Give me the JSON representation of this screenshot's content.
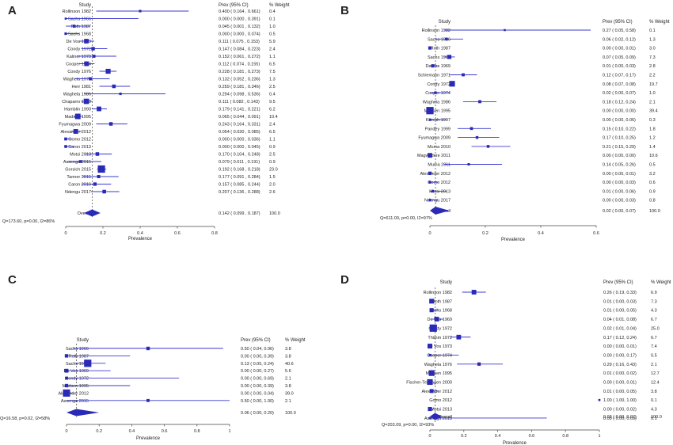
{
  "chart_data": [
    {
      "panel": "A",
      "type": "forest",
      "study_header": "Study",
      "prev_header": "Prev (95% CI)",
      "weight_header": "% Weight",
      "xlabel": "Prevalence",
      "xlim": [
        0,
        0.8
      ],
      "xticks": [
        "0",
        "0.2",
        "0.4",
        "0.6",
        "0.8"
      ],
      "reference_line": 0.142,
      "studies": [
        {
          "name": "Rollinson 1982",
          "est": 0.4,
          "lo": 0.164,
          "hi": 0.661,
          "ci_text": "0.400  ( 0.164 ,  0.661)",
          "weight": "0.4"
        },
        {
          "name": "Sachs 1966",
          "est": 0.0,
          "lo": 0.0,
          "hi": 0.391,
          "ci_text": "0.000  ( 0.000 ,  0.391)",
          "weight": "0.1"
        },
        {
          "name": "Roth 1987",
          "est": 0.045,
          "lo": 0.001,
          "hi": 0.132,
          "ci_text": "0.045  ( 0.001 ,  0.132)",
          "weight": "1.0"
        },
        {
          "name": "Sachs 1968",
          "est": 0.0,
          "lo": 0.0,
          "hi": 0.074,
          "ci_text": "0.000  ( 0.000 ,  0.074)",
          "weight": "0.5"
        },
        {
          "name": "De Vos 1969",
          "est": 0.111,
          "lo": 0.075,
          "hi": 0.153,
          "ci_text": "0.111  ( 0.075 ,  0.153)",
          "weight": "5.9"
        },
        {
          "name": "Condy 1972",
          "est": 0.147,
          "lo": 0.084,
          "hi": 0.223,
          "ci_text": "0.147  ( 0.084 ,  0.223)",
          "weight": "2.4"
        },
        {
          "name": "Kaliner 1973",
          "est": 0.152,
          "lo": 0.061,
          "hi": 0.272,
          "ci_text": "0.152  ( 0.061 ,  0.272)",
          "weight": "1.1"
        },
        {
          "name": "Cooper 1974",
          "est": 0.112,
          "lo": 0.074,
          "hi": 0.155,
          "ci_text": "0.112  ( 0.074 ,  0.155)",
          "weight": "6.5"
        },
        {
          "name": "Condy 1976",
          "est": 0.228,
          "lo": 0.181,
          "hi": 0.273,
          "ci_text": "0.228  ( 0.181 ,  0.273)",
          "weight": "7.5"
        },
        {
          "name": "Waghela 1976",
          "est": 0.132,
          "lo": 0.052,
          "hi": 0.236,
          "ci_text": "0.132  ( 0.052 ,  0.236)",
          "weight": "1.3"
        },
        {
          "name": "Herr 1981",
          "est": 0.259,
          "lo": 0.181,
          "hi": 0.346,
          "ci_text": "0.259  ( 0.181 ,  0.346)",
          "weight": "2.5"
        },
        {
          "name": "Waghela 1986",
          "est": 0.294,
          "lo": 0.098,
          "hi": 0.536,
          "ci_text": "0.294  ( 0.098 ,  0.536)",
          "weight": "0.4"
        },
        {
          "name": "Chaparro 1990",
          "est": 0.111,
          "lo": 0.082,
          "hi": 0.143,
          "ci_text": "0.111  ( 0.082 ,  0.143)",
          "weight": "9.5"
        },
        {
          "name": "Hamblin 1990",
          "est": 0.179,
          "li": 0,
          "lo": 0.141,
          "hi": 0.221,
          "ci_text": "0.179  ( 0.141 ,  0.221)",
          "weight": "6.2"
        },
        {
          "name": "Madsen 1995",
          "est": 0.065,
          "lo": 0.044,
          "hi": 0.091,
          "ci_text": "0.065  ( 0.044 ,  0.091)",
          "weight": "10.4"
        },
        {
          "name": "Fyumagwa 2009",
          "est": 0.243,
          "lo": 0.164,
          "hi": 0.331,
          "ci_text": "0.243  ( 0.164 ,  0.331)",
          "weight": "2.4"
        },
        {
          "name": "Alexander 2012",
          "est": 0.054,
          "lo": 0.03,
          "hi": 0.085,
          "ci_text": "0.054  ( 0.030 ,  0.085)",
          "weight": "6.5"
        },
        {
          "name": "Gomo 2012",
          "est": 0.0,
          "lo": 0.0,
          "hi": 0.036,
          "ci_text": "0.000  ( 0.000 ,  0.036)",
          "weight": "1.1"
        },
        {
          "name": "Caron 2013",
          "est": 0.0,
          "lo": 0.0,
          "hi": 0.045,
          "ci_text": "0.000  ( 0.000 ,  0.045)",
          "weight": "0.9"
        },
        {
          "name": "Motsi 2013",
          "est": 0.17,
          "lo": 0.104,
          "hi": 0.248,
          "ci_text": "0.170  ( 0.104 ,  0.248)",
          "weight": "2.5"
        },
        {
          "name": "Assenga 2015",
          "est": 0.079,
          "lo": 0.011,
          "hi": 0.191,
          "ci_text": "0.079  ( 0.011 ,  0.191)",
          "weight": "0.9"
        },
        {
          "name": "Gorsich 2015",
          "est": 0.192,
          "lo": 0.168,
          "hi": 0.218,
          "ci_text": "0.192  ( 0.168 ,  0.218)",
          "weight": "23.0"
        },
        {
          "name": "Tanner 2015",
          "est": 0.177,
          "lo": 0.091,
          "hi": 0.284,
          "ci_text": "0.177  ( 0.091 ,  0.284)",
          "weight": "1.5"
        },
        {
          "name": "Caron 2016",
          "est": 0.157,
          "lo": 0.085,
          "hi": 0.244,
          "ci_text": "0.157  ( 0.085 ,  0.244)",
          "weight": "2.0"
        },
        {
          "name": "Ndengu 2017",
          "est": 0.207,
          "lo": 0.136,
          "hi": 0.288,
          "ci_text": "0.207  ( 0.136 ,  0.288)",
          "weight": "2.6"
        }
      ],
      "overall": {
        "label": "Overall",
        "est": 0.142,
        "lo": 0.099,
        "hi": 0.187,
        "ci_text": "0.142  ( 0.099 ,  0.187)",
        "weight": "100.0"
      },
      "heterogeneity": "Q=173.60, p=0.00, I2=86%"
    },
    {
      "panel": "B",
      "type": "forest",
      "study_header": "Study",
      "prev_header": "Prev (95% CI)",
      "weight_header": "% Weight",
      "xlabel": "Prevalence",
      "xlim": [
        0,
        0.6
      ],
      "xticks": [
        "0",
        "0.2",
        "0.4",
        "0.6"
      ],
      "reference_line": 0.02,
      "studies": [
        {
          "name": "Rollinson 1982",
          "est": 0.27,
          "lo": 0.05,
          "hi": 0.58,
          "ci_text": "0.27  ( 0.05,  0.58)",
          "weight": "0.1"
        },
        {
          "name": "Sachs 1966",
          "est": 0.06,
          "lo": 0.02,
          "hi": 0.12,
          "ci_text": "0.06  ( 0.02,  0.12)",
          "weight": "1.3"
        },
        {
          "name": "Roth 1987",
          "est": 0.0,
          "lo": 0.0,
          "hi": 0.01,
          "ci_text": "0.00  ( 0.00,  0.01)",
          "weight": "3.0"
        },
        {
          "name": "Sachs 1968",
          "est": 0.07,
          "lo": 0.05,
          "hi": 0.09,
          "ci_text": "0.07  ( 0.05,  0.09)",
          "weight": "7.3"
        },
        {
          "name": "De Vos 1969",
          "est": 0.01,
          "lo": 0.0,
          "hi": 0.03,
          "ci_text": "0.01  ( 0.00,  0.03)",
          "weight": "2.8"
        },
        {
          "name": "Schiemann 1971",
          "est": 0.12,
          "lo": 0.07,
          "hi": 0.17,
          "ci_text": "0.12  ( 0.07,  0.17)",
          "weight": "2.2"
        },
        {
          "name": "Condy 1972",
          "est": 0.08,
          "lo": 0.07,
          "hi": 0.08,
          "ci_text": "0.08  ( 0.07,  0.08)",
          "weight": "19.7"
        },
        {
          "name": "Cooper 1974",
          "est": 0.02,
          "lo": 0.0,
          "hi": 0.07,
          "ci_text": "0.02  ( 0.00,  0.07)",
          "weight": "1.0"
        },
        {
          "name": "Waghela 1986",
          "est": 0.18,
          "lo": 0.12,
          "hi": 0.24,
          "ci_text": "0.18  ( 0.12,  0.24)",
          "weight": "2.1"
        },
        {
          "name": "Madsen 1995",
          "est": 0.0,
          "lo": 0.0,
          "hi": 0.0,
          "ci_text": "0.00  ( 0.00,  0.00)",
          "weight": "39.4"
        },
        {
          "name": "Karesh 1997",
          "est": 0.0,
          "lo": 0.0,
          "hi": 0.06,
          "ci_text": "0.00  ( 0.00,  0.06)",
          "weight": "0.3"
        },
        {
          "name": "Pandey 1999",
          "est": 0.15,
          "lo": 0.1,
          "hi": 0.22,
          "ci_text": "0.15  ( 0.10,  0.22)",
          "weight": "1.8"
        },
        {
          "name": "Fyumagwa 2009",
          "est": 0.17,
          "lo": 0.1,
          "hi": 0.25,
          "ci_text": "0.17  ( 0.10,  0.25)",
          "weight": "1.2"
        },
        {
          "name": "Muma 2010",
          "est": 0.21,
          "lo": 0.15,
          "hi": 0.29,
          "ci_text": "0.21  ( 0.15,  0.29)",
          "weight": "1.4"
        },
        {
          "name": "Magwedere 2011",
          "est": 0.0,
          "lo": 0.0,
          "hi": 0.0,
          "ci_text": "0.00  ( 0.00,  0.00)",
          "weight": "10.6"
        },
        {
          "name": "Muma 2011",
          "est": 0.14,
          "lo": 0.05,
          "hi": 0.26,
          "ci_text": "0.14  ( 0.05,  0.26)",
          "weight": "0.5"
        },
        {
          "name": "Alexander 2012",
          "est": 0.0,
          "lo": 0.0,
          "hi": 0.01,
          "ci_text": "0.00  ( 0.00,  0.01)",
          "weight": "3.2"
        },
        {
          "name": "Gomo 2012",
          "est": 0.0,
          "lo": 0.0,
          "hi": 0.03,
          "ci_text": "0.00  ( 0.00,  0.03)",
          "weight": "0.6"
        },
        {
          "name": "Motsi 2013",
          "est": 0.01,
          "lo": 0.0,
          "hi": 0.06,
          "ci_text": "0.01  ( 0.00,  0.06)",
          "weight": "0.9"
        },
        {
          "name": "Ndengu 2017",
          "est": 0.0,
          "lo": 0.0,
          "hi": 0.03,
          "ci_text": "0.00  ( 0.00,  0.03)",
          "weight": "0.8"
        }
      ],
      "overall": {
        "label": "Overall",
        "est": 0.02,
        "lo": 0.0,
        "hi": 0.07,
        "ci_text": "0.02  ( 0.00,  0.07)",
        "weight": "100.0"
      },
      "heterogeneity": "Q=611.00, p=0.00, I2=97%"
    },
    {
      "panel": "C",
      "type": "forest",
      "study_header": "Study",
      "prev_header": "Prev (95% CI)",
      "weight_header": "% Weight",
      "xlabel": "Prevalence",
      "xlim": [
        0,
        1
      ],
      "xticks": [
        "0",
        "0.2",
        "0.4",
        "0.6",
        "0.8",
        "1"
      ],
      "reference_line": 0.06,
      "studies": [
        {
          "name": "Sachs 1966",
          "est": 0.5,
          "lo": 0.04,
          "hi": 0.96,
          "ci_text": "0.50  ( 0.04,  0.96)",
          "weight": "3.8"
        },
        {
          "name": "Roth 1987",
          "est": 0.0,
          "lo": 0.0,
          "hi": 0.39,
          "ci_text": "0.00  ( 0.00,  0.39)",
          "weight": "3.8"
        },
        {
          "name": "Sachs 1968",
          "est": 0.13,
          "lo": 0.05,
          "hi": 0.24,
          "ci_text": "0.13  ( 0.05,  0.24)",
          "weight": "40.6"
        },
        {
          "name": "De Vos 1969",
          "est": 0.0,
          "lo": 0.0,
          "hi": 0.27,
          "ci_text": "0.00  ( 0.00,  0.27)",
          "weight": "5.6"
        },
        {
          "name": "Condy 1972",
          "est": 0.0,
          "lo": 0.0,
          "hi": 0.69,
          "ci_text": "0.00  ( 0.00,  0.69)",
          "weight": "2.1"
        },
        {
          "name": "Madsen 1995",
          "est": 0.0,
          "lo": 0.0,
          "hi": 0.39,
          "ci_text": "0.00  ( 0.00,  0.39)",
          "weight": "3.8"
        },
        {
          "name": "Alexander 2012",
          "est": 0.0,
          "lo": 0.0,
          "hi": 0.04,
          "ci_text": "0.00  ( 0.00,  0.04)",
          "weight": "39.0"
        },
        {
          "name": "Assenga 2015",
          "est": 0.5,
          "lo": 0.0,
          "hi": 1.0,
          "ci_text": "0.50  ( 0.00,  1.00)",
          "weight": "2.1"
        }
      ],
      "overall": {
        "label": "Overall",
        "est": 0.06,
        "lo": 0.0,
        "hi": 0.2,
        "ci_text": "0.06  ( 0.00,  0.20)",
        "weight": "100.0"
      },
      "heterogeneity": "Q=16.58, p=0.02, I2=58%"
    },
    {
      "panel": "D",
      "type": "forest",
      "study_header": "Study",
      "prev_header": "Prev (95% CI)",
      "weight_header": "% Weight",
      "xlabel": "Prevalence",
      "xlim": [
        0,
        1
      ],
      "xticks": [
        "0",
        "0.2",
        "0.4",
        "0.6",
        "0.8",
        "1"
      ],
      "reference_line": 0.03,
      "studies": [
        {
          "name": "Rollinson 1982",
          "est": 0.26,
          "lo": 0.19,
          "hi": 0.33,
          "ci_text": "0.26  ( 0.19,  0.33)",
          "weight": "6.9"
        },
        {
          "name": "Roth 1987",
          "est": 0.01,
          "lo": 0.0,
          "hi": 0.03,
          "ci_text": "0.01  ( 0.00,  0.03)",
          "weight": "7.3"
        },
        {
          "name": "Sachs 1968",
          "est": 0.01,
          "lo": 0.0,
          "hi": 0.05,
          "ci_text": "0.01  ( 0.00,  0.05)",
          "weight": "4.3"
        },
        {
          "name": "De Vos 1969",
          "est": 0.04,
          "lo": 0.01,
          "hi": 0.08,
          "ci_text": "0.04  ( 0.01,  0.08)",
          "weight": "6.7"
        },
        {
          "name": "Condy 1972",
          "est": 0.02,
          "lo": 0.01,
          "hi": 0.04,
          "ci_text": "0.02  ( 0.01,  0.04)",
          "weight": "25.0"
        },
        {
          "name": "Thimm 1972",
          "est": 0.17,
          "lo": 0.12,
          "hi": 0.24,
          "ci_text": "0.17  ( 0.12,  0.24)",
          "weight": "6.7"
        },
        {
          "name": "De Vos 1973",
          "est": 0.0,
          "lo": 0.0,
          "hi": 0.01,
          "ci_text": "0.00  ( 0.00,  0.01)",
          "weight": "7.4"
        },
        {
          "name": "Cooper 1974",
          "est": 0.0,
          "lo": 0.0,
          "hi": 0.17,
          "ci_text": "0.00  ( 0.00,  0.17)",
          "weight": "0.5"
        },
        {
          "name": "Waghela 1976",
          "est": 0.29,
          "lo": 0.16,
          "hi": 0.43,
          "ci_text": "0.29  ( 0.16,  0.43)",
          "weight": "2.1"
        },
        {
          "name": "Madsen 1995",
          "est": 0.01,
          "lo": 0.0,
          "hi": 0.02,
          "ci_text": "0.01  ( 0.00,  0.02)",
          "weight": "12.7"
        },
        {
          "name": "Fischer-Tenhagen 2000",
          "est": 0.0,
          "lo": 0.0,
          "hi": 0.01,
          "ci_text": "0.00  ( 0.00,  0.01)",
          "weight": "12.4"
        },
        {
          "name": "Alexander 2012",
          "est": 0.01,
          "lo": 0.0,
          "hi": 0.05,
          "ci_text": "0.01  ( 0.00,  0.05)",
          "weight": "3.8"
        },
        {
          "name": "Gomo 2012",
          "est": 1.0,
          "lo": 1.0,
          "hi": 1.0,
          "ci_text": "1.00  ( 1.00,  1.00)",
          "weight": "0.1"
        },
        {
          "name": "Motsi 2013",
          "est": 0.0,
          "lo": 0.0,
          "hi": 0.02,
          "ci_text": "0.00  ( 0.00,  0.02)",
          "weight": "4.3"
        },
        {
          "name": "Assenga 2015",
          "est": 0.0,
          "lo": 0.0,
          "hi": 0.69,
          "ci_text": "0.00  ( 0.00,  0.69)",
          "weight": "0.1"
        }
      ],
      "overall": {
        "label": "Overall",
        "est": 0.03,
        "lo": 0.0,
        "hi": 0.07,
        "ci_text": "0.03  ( 0.00,  0.07)",
        "weight": "100.0"
      },
      "heterogeneity": "Q=203.09, p=0.00, I2=93%"
    }
  ],
  "colors": {
    "marker": "#2a2ab8",
    "ci_line": "#3a3ad0",
    "text": "#222222",
    "axis": "#444444"
  }
}
